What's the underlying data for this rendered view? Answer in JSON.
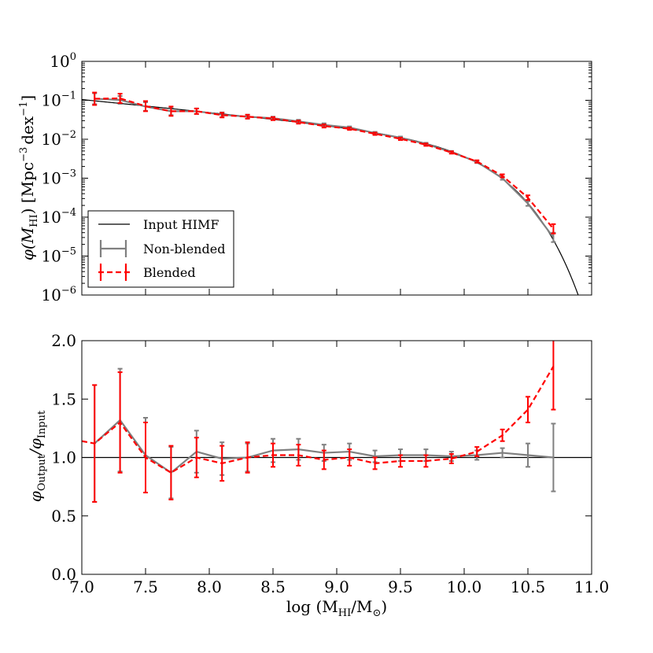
{
  "chart_data": [
    {
      "type": "line",
      "panel": "top",
      "yscale": "log",
      "xlim": [
        7.0,
        11.0
      ],
      "ylim_log10": [
        -6,
        0
      ],
      "ylabel": {
        "prefix": "φ(M",
        "sub": "HI",
        "mid": ") [Mpc",
        "sup1": "−3",
        "mid2": "dex",
        "sup2": "−1",
        "suffix": "]"
      },
      "yticks": [
        {
          "exp": 0,
          "base": "10",
          "sup": "0"
        },
        {
          "exp": -1,
          "base": "10",
          "sup": "−1"
        },
        {
          "exp": -2,
          "base": "10",
          "sup": "−2"
        },
        {
          "exp": -3,
          "base": "10",
          "sup": "−3"
        },
        {
          "exp": -4,
          "base": "10",
          "sup": "−4"
        },
        {
          "exp": -5,
          "base": "10",
          "sup": "−5"
        },
        {
          "exp": -6,
          "base": "10",
          "sup": "−6"
        }
      ],
      "legend": {
        "position": "lower-left",
        "entries": [
          "Input HIMF",
          "Non-blended",
          "Blended"
        ]
      },
      "input_himf": {
        "phi_star": 0.0048,
        "log_m_star": 9.96,
        "alpha": -1.33,
        "x_range": [
          7.0,
          11.0
        ]
      },
      "series": [
        {
          "name": "Non-blended",
          "color": "#808080",
          "x": [
            7.1,
            7.3,
            7.5,
            7.7,
            7.9,
            8.1,
            8.3,
            8.5,
            8.7,
            8.9,
            9.1,
            9.3,
            9.5,
            9.7,
            9.9,
            10.1,
            10.3,
            10.5,
            10.7
          ],
          "log_y": [
            -0.96,
            -0.99,
            -1.16,
            -1.28,
            -1.28,
            -1.37,
            -1.42,
            -1.46,
            -1.54,
            -1.63,
            -1.7,
            -1.84,
            -1.96,
            -2.12,
            -2.33,
            -2.58,
            -3.0,
            -3.65,
            -4.52
          ],
          "err_dex": [
            0.14,
            0.1,
            0.11,
            0.1,
            0.07,
            0.06,
            0.05,
            0.04,
            0.04,
            0.04,
            0.03,
            0.03,
            0.03,
            0.03,
            0.03,
            0.03,
            0.04,
            0.06,
            0.12
          ]
        },
        {
          "name": "Blended",
          "color": "#ff0000",
          "x": [
            7.1,
            7.3,
            7.5,
            7.7,
            7.9,
            8.1,
            8.3,
            8.5,
            8.7,
            8.9,
            9.1,
            9.3,
            9.5,
            9.7,
            9.9,
            10.1,
            10.3,
            10.5,
            10.7
          ],
          "log_y": [
            -0.96,
            -0.95,
            -1.15,
            -1.28,
            -1.28,
            -1.38,
            -1.42,
            -1.47,
            -1.56,
            -1.66,
            -1.73,
            -1.86,
            -1.99,
            -2.14,
            -2.34,
            -2.57,
            -2.94,
            -3.5,
            -4.3
          ],
          "err_dex": [
            0.16,
            0.12,
            0.13,
            0.12,
            0.07,
            0.06,
            0.05,
            0.04,
            0.04,
            0.04,
            0.03,
            0.03,
            0.03,
            0.03,
            0.03,
            0.03,
            0.04,
            0.06,
            0.12
          ]
        }
      ]
    },
    {
      "type": "line",
      "panel": "bottom",
      "xlim": [
        7.0,
        11.0
      ],
      "ylim": [
        0.0,
        2.0
      ],
      "xlabel": {
        "prefix": "log (M",
        "sub": "HI",
        "mid": "/M",
        "sub2": "⊙",
        "suffix": ")"
      },
      "ylabel": {
        "prefix": "φ",
        "sub1": "Output",
        "mid": "/φ",
        "sub2": "Input"
      },
      "xticks": [
        "7.0",
        "7.5",
        "8.0",
        "8.5",
        "9.0",
        "9.5",
        "10.0",
        "10.5",
        "11.0"
      ],
      "xtick_values": [
        7.0,
        7.5,
        8.0,
        8.5,
        9.0,
        9.5,
        10.0,
        10.5,
        11.0
      ],
      "yticks": [
        "0.0",
        "0.5",
        "1.0",
        "1.5",
        "2.0"
      ],
      "ytick_values": [
        0.0,
        0.5,
        1.0,
        1.5,
        2.0
      ],
      "reference_line": 1.0,
      "series": [
        {
          "name": "Non-blended",
          "color": "#808080",
          "x": [
            7.1,
            7.3,
            7.5,
            7.7,
            7.9,
            8.1,
            8.3,
            8.5,
            8.7,
            8.9,
            9.1,
            9.3,
            9.5,
            9.7,
            9.9,
            10.1,
            10.3,
            10.5,
            10.7
          ],
          "y": [
            1.12,
            1.32,
            1.02,
            0.87,
            1.05,
            0.99,
            1.0,
            1.06,
            1.07,
            1.04,
            1.05,
            1.01,
            1.02,
            1.02,
            1.01,
            1.02,
            1.04,
            1.02,
            1.0
          ],
          "err": [
            0.5,
            0.44,
            0.32,
            0.22,
            0.18,
            0.14,
            0.12,
            0.1,
            0.09,
            0.07,
            0.07,
            0.05,
            0.05,
            0.05,
            0.04,
            0.04,
            0.04,
            0.1,
            0.29
          ]
        },
        {
          "name": "Blended",
          "color": "#ff0000",
          "x": [
            7.0,
            7.1,
            7.3,
            7.5,
            7.7,
            7.9,
            8.1,
            8.3,
            8.5,
            8.7,
            8.9,
            9.1,
            9.3,
            9.5,
            9.7,
            9.9,
            10.1,
            10.3,
            10.5,
            10.7
          ],
          "y": [
            1.14,
            1.12,
            1.3,
            1.0,
            0.87,
            1.0,
            0.95,
            1.0,
            1.02,
            1.02,
            0.98,
            1.0,
            0.95,
            0.97,
            0.97,
            0.99,
            1.05,
            1.19,
            1.41,
            1.78
          ],
          "err": [
            0,
            0.5,
            0.43,
            0.3,
            0.23,
            0.17,
            0.15,
            0.13,
            0.1,
            0.09,
            0.08,
            0.07,
            0.05,
            0.05,
            0.05,
            0.04,
            0.04,
            0.05,
            0.11,
            0.37
          ]
        }
      ]
    }
  ]
}
